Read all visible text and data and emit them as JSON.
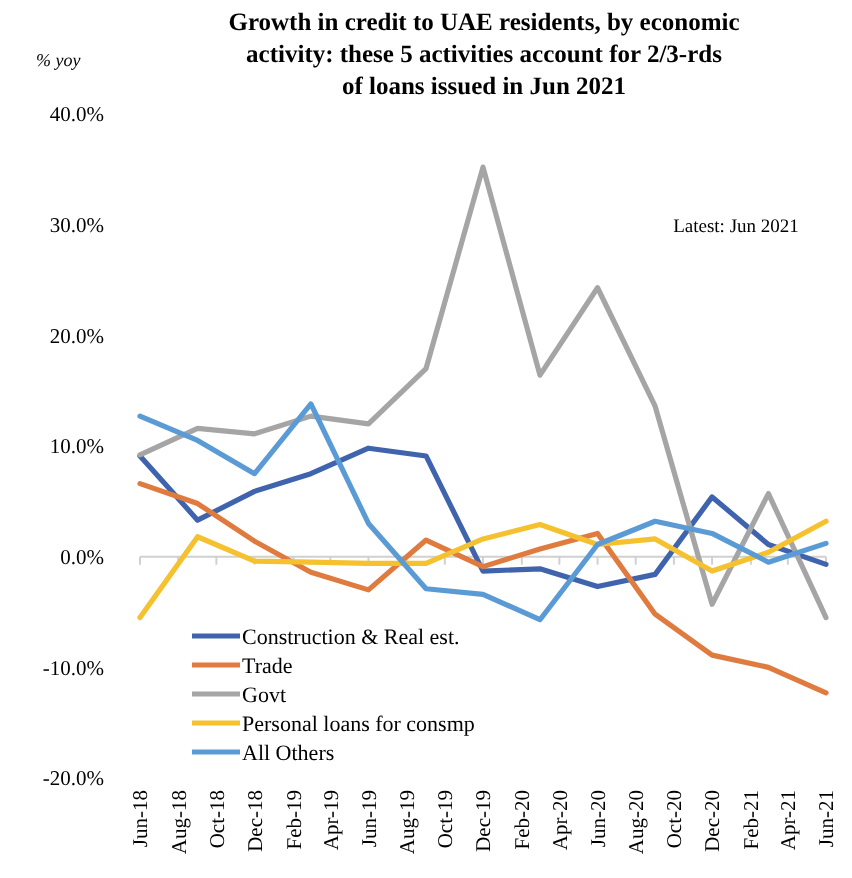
{
  "chart_data": {
    "type": "line",
    "title": "Growth in credit to UAE residents, by economic activity: these 5 activities account for 2/3-rds of loans issued in Jun 2021",
    "ylabel": "% yoy",
    "annotations": [
      "Latest: Jun 2021"
    ],
    "x": [
      "2018-06",
      "2018-09",
      "2018-12",
      "2019-03",
      "2019-06",
      "2019-09",
      "2019-12",
      "2020-03",
      "2020-06",
      "2020-09",
      "2020-12",
      "2021-03",
      "2021-06"
    ],
    "series": [
      {
        "name": "Construction & Real est.",
        "color": "#3f64ad",
        "values": [
          9.1,
          3.3,
          5.9,
          7.5,
          9.8,
          9.1,
          -1.3,
          -1.1,
          -2.7,
          -1.6,
          5.4,
          1.1,
          -0.7
        ]
      },
      {
        "name": "Trade",
        "color": "#e07b3f",
        "values": [
          6.6,
          4.8,
          1.4,
          -1.4,
          -3.0,
          1.5,
          -0.9,
          0.7,
          2.1,
          -5.2,
          -8.9,
          -10.0,
          -12.3
        ]
      },
      {
        "name": "Govt",
        "color": "#a5a5a5",
        "values": [
          9.2,
          11.6,
          11.1,
          12.7,
          12.0,
          17.0,
          35.2,
          16.4,
          24.3,
          13.6,
          -4.3,
          5.7,
          -5.5
        ]
      },
      {
        "name": "Personal loans for consmp",
        "color": "#f5c12e",
        "values": [
          -5.5,
          1.8,
          -0.4,
          -0.5,
          -0.6,
          -0.6,
          1.6,
          2.9,
          1.1,
          1.6,
          -1.3,
          0.4,
          3.2
        ]
      },
      {
        "name": "All Others",
        "color": "#5b9bd5",
        "values": [
          12.7,
          10.5,
          7.5,
          13.8,
          3.0,
          -2.9,
          -3.4,
          -5.7,
          1.1,
          3.2,
          2.1,
          -0.5,
          1.2
        ]
      }
    ],
    "ylim": [
      -20,
      40
    ],
    "yticks": [
      {
        "value": -20,
        "label": "-20.0%"
      },
      {
        "value": -10,
        "label": "-10.0%"
      },
      {
        "value": 0,
        "label": "0.0%"
      },
      {
        "value": 10,
        "label": "10.0%"
      },
      {
        "value": 20,
        "label": "20.0%"
      },
      {
        "value": 30,
        "label": "30.0%"
      },
      {
        "value": 40,
        "label": "40.0%"
      }
    ],
    "xlim": [
      "2018-06",
      "2021-06"
    ],
    "xticks": [
      {
        "value": "2018-06",
        "label": "Jun-18"
      },
      {
        "value": "2018-08",
        "label": "Aug-18"
      },
      {
        "value": "2018-10",
        "label": "Oct-18"
      },
      {
        "value": "2018-12",
        "label": "Dec-18"
      },
      {
        "value": "2019-02",
        "label": "Feb-19"
      },
      {
        "value": "2019-04",
        "label": "Apr-19"
      },
      {
        "value": "2019-06",
        "label": "Jun-19"
      },
      {
        "value": "2019-08",
        "label": "Aug-19"
      },
      {
        "value": "2019-10",
        "label": "Oct-19"
      },
      {
        "value": "2019-12",
        "label": "Dec-19"
      },
      {
        "value": "2020-02",
        "label": "Feb-20"
      },
      {
        "value": "2020-04",
        "label": "Apr-20"
      },
      {
        "value": "2020-06",
        "label": "Jun-20"
      },
      {
        "value": "2020-08",
        "label": "Aug-20"
      },
      {
        "value": "2020-10",
        "label": "Oct-20"
      },
      {
        "value": "2020-12",
        "label": "Dec-20"
      },
      {
        "value": "2021-02",
        "label": "Feb-21"
      },
      {
        "value": "2021-04",
        "label": "Apr-21"
      },
      {
        "value": "2021-06",
        "label": "Jun-21"
      }
    ],
    "legend": "bottom left",
    "marker": "none",
    "line_style": "solid"
  }
}
